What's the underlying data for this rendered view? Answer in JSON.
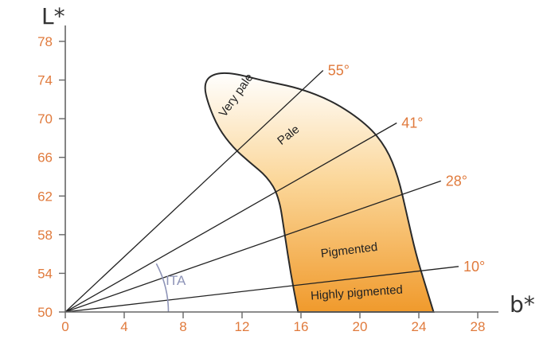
{
  "chart_data": {
    "type": "line",
    "title": "",
    "xlabel": "b*",
    "ylabel": "L*",
    "xlim": [
      0,
      28
    ],
    "ylim": [
      50,
      78
    ],
    "x_ticks": [
      0,
      4,
      8,
      12,
      16,
      20,
      24,
      28
    ],
    "y_ticks": [
      50,
      54,
      58,
      62,
      66,
      70,
      74,
      78
    ],
    "grid": false,
    "rays": [
      {
        "label": "55°",
        "angle_deg": 55,
        "end_b": 17.5
      },
      {
        "label": "41°",
        "angle_deg": 41,
        "end_b": 22.5
      },
      {
        "label": "28°",
        "angle_deg": 28,
        "end_b": 25.5
      },
      {
        "label": "10°",
        "angle_deg": 10,
        "end_b": 26.7
      }
    ],
    "region_outline": [
      [
        15.8,
        50
      ],
      [
        15.3,
        54
      ],
      [
        14.9,
        58
      ],
      [
        14.5,
        62
      ],
      [
        13.7,
        64
      ],
      [
        12.5,
        65.5
      ],
      [
        11.4,
        67
      ],
      [
        10.4,
        69
      ],
      [
        9.7,
        71.5
      ],
      [
        9.4,
        73.5
      ],
      [
        9.9,
        74.6
      ],
      [
        11.2,
        74.8
      ],
      [
        13.5,
        73.9
      ],
      [
        15.8,
        73.2
      ],
      [
        18.2,
        71.8
      ],
      [
        20.5,
        69.4
      ],
      [
        21.8,
        67
      ],
      [
        22.6,
        64
      ],
      [
        23.2,
        60
      ],
      [
        23.8,
        56
      ],
      [
        24.4,
        53
      ],
      [
        25.0,
        50
      ]
    ],
    "regions": [
      {
        "label": "Very pale",
        "b": 11.8,
        "L": 72.2,
        "rotate": -55
      },
      {
        "label": "Pale",
        "b": 15.3,
        "L": 68.0,
        "rotate": -38
      },
      {
        "label": "Pigmented",
        "b": 19.3,
        "L": 56.0,
        "rotate": -7
      },
      {
        "label": "Highly pigmented",
        "b": 19.8,
        "L": 51.6,
        "rotate": -4
      }
    ],
    "annotations": [
      {
        "label": "ITA",
        "b": 7.5,
        "L": 52.8
      }
    ],
    "fill_colors": {
      "top": "#ffffff",
      "middle": "#fbd79a",
      "bottom": "#f09a2c"
    },
    "ray_color": "#222222",
    "axis_color": "#666666"
  }
}
